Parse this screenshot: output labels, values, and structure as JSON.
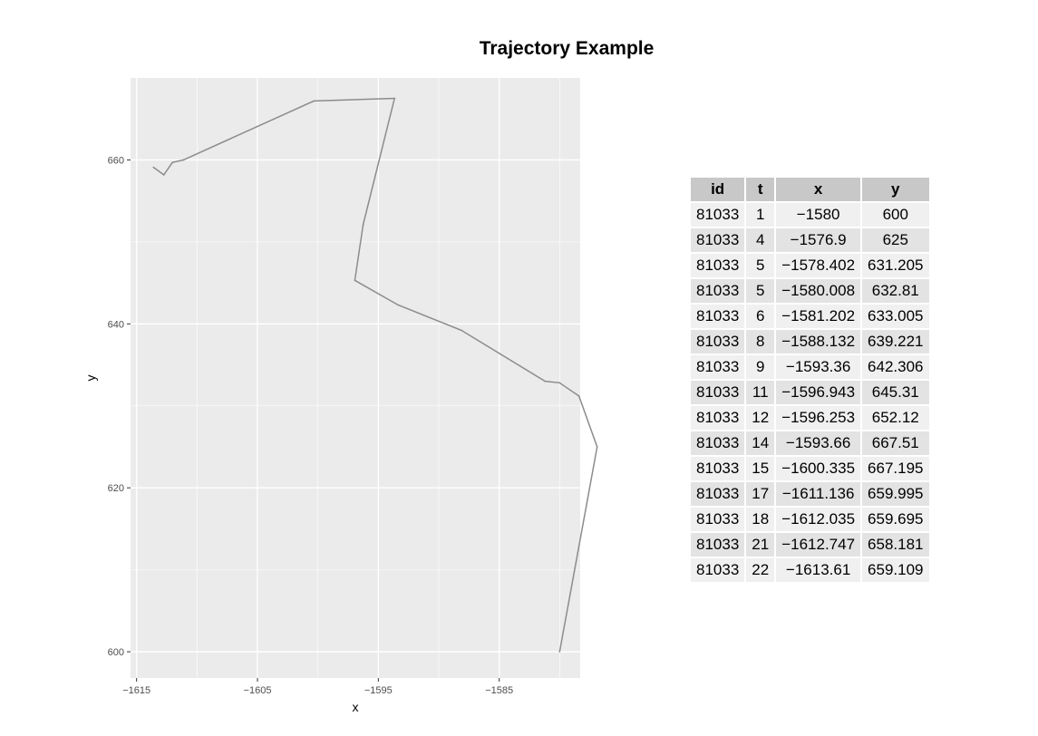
{
  "chart_data": {
    "type": "line",
    "title": "Trajectory Example",
    "xlabel": "x",
    "ylabel": "y",
    "xlim": [
      -1615.5,
      -1578.3
    ],
    "ylim": [
      596.8,
      670.0
    ],
    "x_ticks": [
      -1615,
      -1605,
      -1595,
      -1585
    ],
    "x_tick_labels": [
      "−1615",
      "−1605",
      "−1595",
      "−1585"
    ],
    "y_ticks": [
      600,
      620,
      640,
      660
    ],
    "y_tick_labels": [
      "600",
      "620",
      "640",
      "660"
    ],
    "grid": true,
    "line_color": "#8c8c8c",
    "panel_color": "#ebebeb",
    "x": [
      -1580,
      -1576.9,
      -1578.402,
      -1580.008,
      -1581.202,
      -1588.132,
      -1593.36,
      -1596.943,
      -1596.253,
      -1593.66,
      -1600.335,
      -1611.136,
      -1612.035,
      -1612.747,
      -1613.61
    ],
    "y": [
      600,
      625,
      631.205,
      632.81,
      633.005,
      639.221,
      642.306,
      645.31,
      652.12,
      667.51,
      667.195,
      659.995,
      659.695,
      658.181,
      659.109
    ]
  },
  "table": {
    "headers": [
      "id",
      "t",
      "x",
      "y"
    ],
    "rows": [
      [
        "81033",
        "1",
        "−1580",
        "600"
      ],
      [
        "81033",
        "4",
        "−1576.9",
        "625"
      ],
      [
        "81033",
        "5",
        "−1578.402",
        "631.205"
      ],
      [
        "81033",
        "5",
        "−1580.008",
        "632.81"
      ],
      [
        "81033",
        "6",
        "−1581.202",
        "633.005"
      ],
      [
        "81033",
        "8",
        "−1588.132",
        "639.221"
      ],
      [
        "81033",
        "9",
        "−1593.36",
        "642.306"
      ],
      [
        "81033",
        "11",
        "−1596.943",
        "645.31"
      ],
      [
        "81033",
        "12",
        "−1596.253",
        "652.12"
      ],
      [
        "81033",
        "14",
        "−1593.66",
        "667.51"
      ],
      [
        "81033",
        "15",
        "−1600.335",
        "667.195"
      ],
      [
        "81033",
        "17",
        "−1611.136",
        "659.995"
      ],
      [
        "81033",
        "18",
        "−1612.035",
        "659.695"
      ],
      [
        "81033",
        "21",
        "−1612.747",
        "658.181"
      ],
      [
        "81033",
        "22",
        "−1613.61",
        "659.109"
      ]
    ]
  }
}
